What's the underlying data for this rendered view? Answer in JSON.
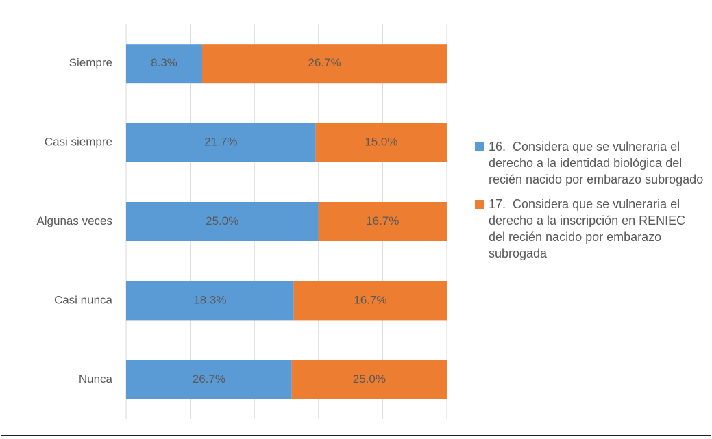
{
  "chart_data": {
    "type": "bar",
    "orientation": "horizontal",
    "stacking": "percent",
    "categories": [
      "Siempre",
      "Casi siempre",
      "Algunas veces",
      "Casi nunca",
      "Nunca"
    ],
    "series": [
      {
        "name": "16.  Considera que se vulneraria el derecho a la identidad biológica del recién nacido por embarazo subrogado",
        "color": "#5b9bd5",
        "values": [
          8.3,
          21.7,
          25.0,
          18.3,
          26.7
        ],
        "value_labels": [
          "8.3%",
          "21.7%",
          "25.0%",
          "18.3%",
          "26.7%"
        ]
      },
      {
        "name": "17.  Considera que se vulneraria el derecho a la inscripción en RENIEC del recién nacido por embarazo subrogada",
        "color": "#ed7d31",
        "values": [
          26.7,
          15.0,
          16.7,
          16.7,
          25.0
        ],
        "value_labels": [
          "26.7%",
          "15.0%",
          "16.7%",
          "16.7%",
          "25.0%"
        ]
      }
    ],
    "legend": "right"
  }
}
